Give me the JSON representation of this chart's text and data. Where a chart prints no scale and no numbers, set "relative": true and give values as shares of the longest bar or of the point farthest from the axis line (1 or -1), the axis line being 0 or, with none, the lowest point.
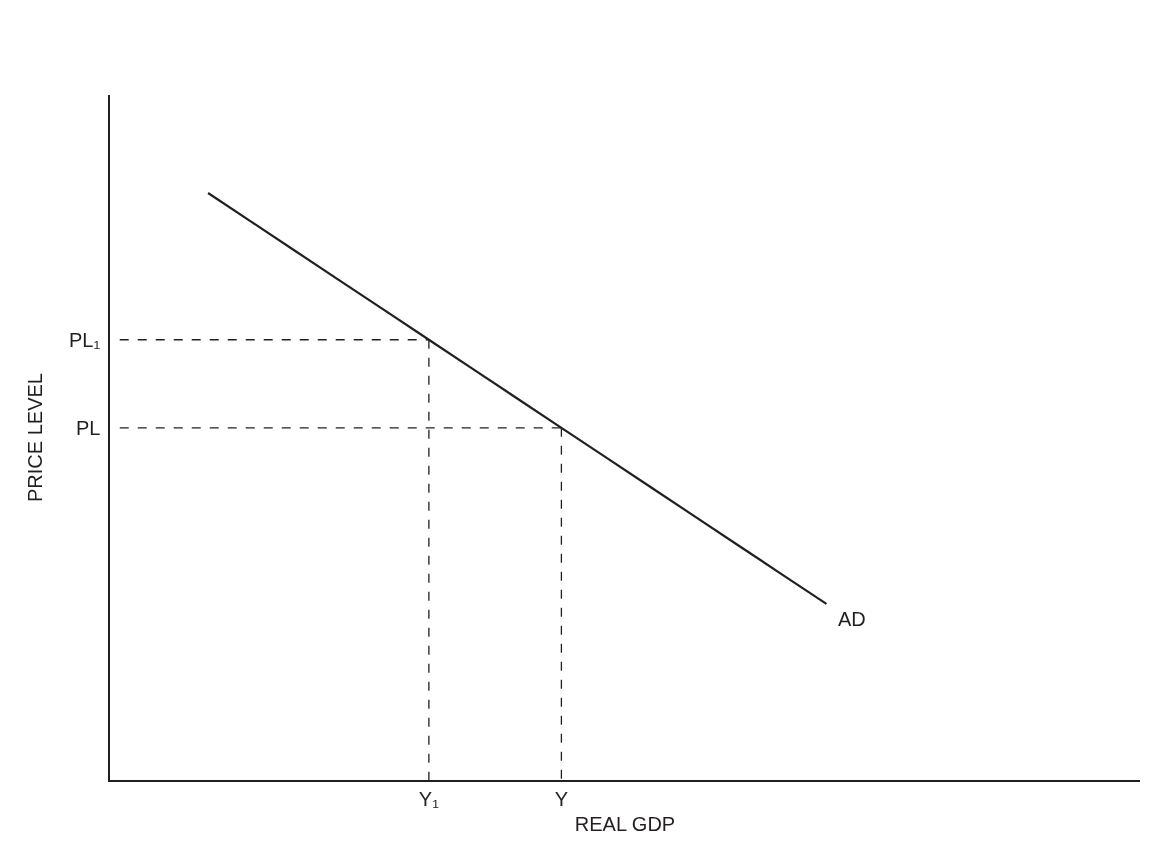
{
  "chart_data": {
    "type": "line",
    "relative": true,
    "xlabel": "REAL GDP",
    "ylabel": "PRICE LEVEL",
    "legend": false,
    "marker": "none",
    "categories": [
      null,
      null,
      null,
      null,
      null,
      null,
      null,
      "Y₁",
      null,
      null,
      "Y",
      null,
      null,
      null,
      null,
      null,
      null
    ],
    "annotations": [
      "PL₁",
      "PL"
    ],
    "series": [
      {
        "name": "AD",
        "color": "#231f20",
        "values": [
          null,
          null,
          1,
          0.95,
          0.9,
          0.85,
          0.8,
          0.75,
          0.7,
          0.65,
          0.6,
          0.55,
          0.5,
          0.45,
          0.4,
          0.35,
          0.3
        ],
        "line_style": "solid"
      },
      {
        "color": "#231f20",
        "values": [
          0.75,
          0.75,
          0.75,
          0.75,
          0.75,
          0.75,
          0.75,
          0.75,
          null,
          null,
          null,
          null,
          null,
          null,
          null,
          null,
          null
        ],
        "line_style": "dashed"
      },
      {
        "color": "#231f20",
        "values": [
          0.6,
          0.6,
          0.6,
          0.6,
          0.6,
          0.6,
          0.6,
          0.6,
          0.6,
          0.6,
          0.6,
          null,
          null,
          null,
          null,
          null,
          null
        ],
        "line_style": "dashed"
      },
      {
        "color": "#231f20",
        "x": [
          "Y₁",
          "Y₁"
        ],
        "values": [
          0.75,
          0
        ],
        "line_style": "dashed"
      },
      {
        "color": "#231f20",
        "x": [
          "Y",
          "Y"
        ],
        "values": [
          0.6,
          0
        ],
        "line_style": "dashed"
      }
    ]
  }
}
